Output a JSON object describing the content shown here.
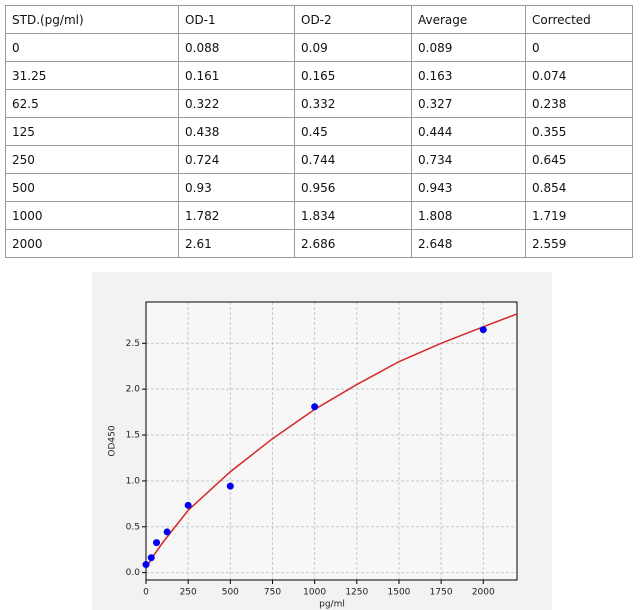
{
  "table": {
    "header": [
      "STD.(pg/ml)",
      "OD-1",
      "OD-2",
      "Average",
      "Corrected"
    ],
    "rows": [
      [
        "0",
        "0.088",
        "0.09",
        "0.089",
        "0"
      ],
      [
        "31.25",
        "0.161",
        "0.165",
        "0.163",
        "0.074"
      ],
      [
        "62.5",
        "0.322",
        "0.332",
        "0.327",
        "0.238"
      ],
      [
        "125",
        "0.438",
        "0.45",
        "0.444",
        "0.355"
      ],
      [
        "250",
        "0.724",
        "0.744",
        "0.734",
        "0.645"
      ],
      [
        "500",
        "0.93",
        "0.956",
        "0.943",
        "0.854"
      ],
      [
        "1000",
        "1.782",
        "1.834",
        "1.808",
        "1.719"
      ],
      [
        "2000",
        "2.61",
        "2.686",
        "2.648",
        "2.559"
      ]
    ]
  },
  "chart_data": {
    "type": "scatter",
    "xlabel": "pg/ml",
    "ylabel": "OD450",
    "x": [
      0,
      31.25,
      62.5,
      125,
      250,
      500,
      1000,
      2000
    ],
    "values": [
      0.089,
      0.163,
      0.327,
      0.444,
      0.734,
      0.943,
      1.808,
      2.648
    ],
    "color": "#0000ee",
    "fit": {
      "x": [
        0,
        50,
        100,
        250,
        500,
        750,
        1000,
        1250,
        1500,
        1750,
        2000,
        2200
      ],
      "values": [
        0.05,
        0.2,
        0.33,
        0.68,
        1.1,
        1.46,
        1.78,
        2.05,
        2.3,
        2.5,
        2.68,
        2.82
      ],
      "color": "#d62728"
    },
    "xlim": [
      0,
      2200
    ],
    "ylim": [
      -0.08,
      2.95
    ],
    "xticks": [
      0,
      250,
      500,
      750,
      1000,
      1250,
      1500,
      1750,
      2000
    ],
    "yticks": [
      {
        "value": 0,
        "label": "0.0"
      },
      0.5,
      {
        "value": 1,
        "label": "1.0"
      },
      1.5,
      {
        "value": 2,
        "label": "2.0"
      },
      2.5
    ],
    "grid": true
  }
}
